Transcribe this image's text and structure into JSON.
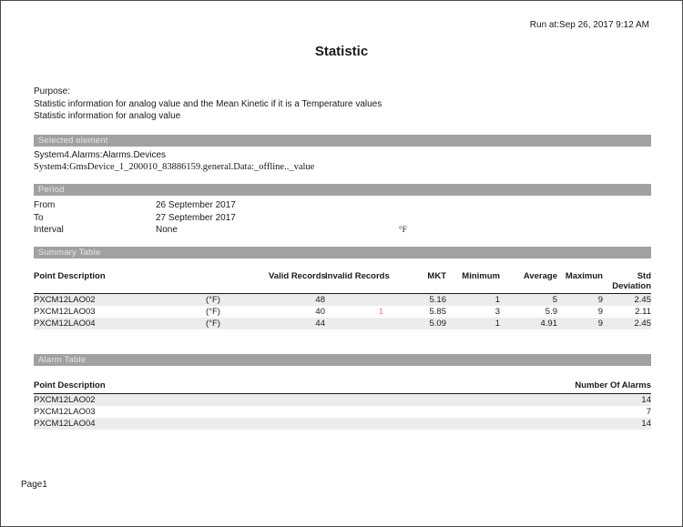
{
  "page": {
    "run_at": "Run at:Sep 26, 2017 9:12 AM",
    "title": "Statistic",
    "footer": "Page1"
  },
  "purpose": {
    "label": "Purpose:",
    "lines": [
      "Statistic information for analog value and the Mean Kinetic if it is a Temperature values",
      "Statistic information for analog value"
    ]
  },
  "selected_element": {
    "section_title": "Selected element",
    "line1": "System4.Alarms:Alarms.Devices",
    "line2": "System4:GmsDevice_1_200010_83886159.general.Data:_offline.._value"
  },
  "period": {
    "section_title": "Period",
    "rows": [
      {
        "label": "From",
        "value": "26 September 2017"
      },
      {
        "label": "To",
        "value": "27 September 2017"
      },
      {
        "label": "Interval",
        "value": "None"
      }
    ],
    "unit": "°F"
  },
  "summary_table": {
    "section_title": "Summary Table",
    "headers": [
      "Point Description",
      "",
      "Valid Records",
      "Invalid Records",
      "MKT",
      "Minimum",
      "Average",
      "Maximun",
      "Std Deviation"
    ],
    "rows": [
      [
        "PXCM12LAO02",
        "(°F)",
        "48",
        "",
        "5.16",
        "1",
        "5",
        "9",
        "2.45"
      ],
      [
        "PXCM12LAO03",
        "(°F)",
        "40",
        "1",
        "5.85",
        "3",
        "5.9",
        "9",
        "2.11"
      ],
      [
        "PXCM12LAO04",
        "(°F)",
        "44",
        "",
        "5.09",
        "1",
        "4.91",
        "9",
        "2.45"
      ]
    ]
  },
  "alarm_table": {
    "section_title": "Alarm Table",
    "headers": [
      "Point Description",
      "Number Of Alarms"
    ],
    "rows": [
      [
        "PXCM12LAO02",
        "14"
      ],
      [
        "PXCM12LAO03",
        "7"
      ],
      [
        "PXCM12LAO04",
        "14"
      ]
    ]
  },
  "colors": {
    "section_bar": "#a1a1a1",
    "section_bar_text": "#e6e6e6",
    "row_stripe": "#ececec",
    "invalid_value": "#ef7d72",
    "header_rule": "#1a1a1a",
    "page_border": "#4a4a4a"
  }
}
